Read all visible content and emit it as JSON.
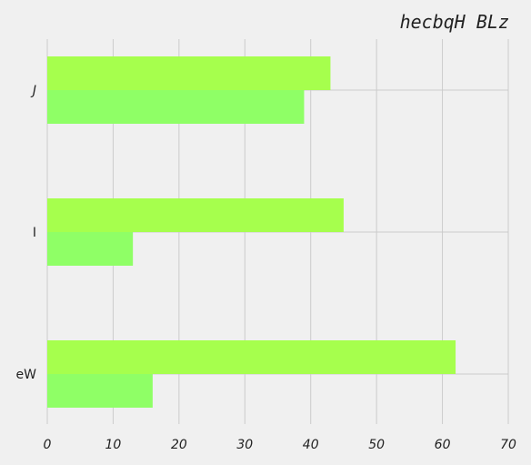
{
  "chart_data": {
    "type": "bar",
    "orientation": "horizontal",
    "title": "hecbqH BLz",
    "categories": [
      "J",
      "I",
      "eW"
    ],
    "category_styles": [
      "italic",
      "normal",
      "normal"
    ],
    "series": [
      {
        "values": [
          43,
          45,
          62
        ],
        "color": "#a6ff4d"
      },
      {
        "values": [
          39,
          13,
          16
        ],
        "color": "#8fff66"
      }
    ],
    "xlim": [
      0,
      70
    ],
    "xticks": [
      "0",
      "10",
      "20",
      "30",
      "40",
      "50",
      "60",
      "70"
    ],
    "grid": true,
    "background": "#f0f0f0",
    "grid_color": "#cbcbcb"
  }
}
